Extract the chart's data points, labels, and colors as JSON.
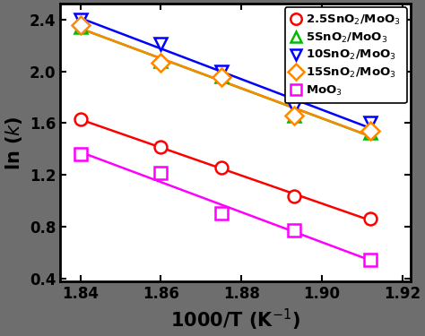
{
  "series": [
    {
      "label": "2.5SnO$_2$/MoO$_3$",
      "color": "#ff0000",
      "marker": "o",
      "hollow": true,
      "half_filled": true,
      "x": [
        1.84,
        1.86,
        1.875,
        1.893,
        1.912
      ],
      "y": [
        1.63,
        1.415,
        1.255,
        1.035,
        0.865
      ]
    },
    {
      "label": "5SnO$_2$/MoO$_3$",
      "color": "#00bb00",
      "marker": "^",
      "hollow": true,
      "half_filled": false,
      "x": [
        1.84,
        1.86,
        1.875,
        1.893,
        1.912
      ],
      "y": [
        2.34,
        2.08,
        1.96,
        1.66,
        1.53
      ]
    },
    {
      "label": "10SnO$_2$/MoO$_3$",
      "color": "#0000ff",
      "marker": "v",
      "hollow": true,
      "half_filled": false,
      "x": [
        1.84,
        1.86,
        1.875,
        1.893,
        1.912
      ],
      "y": [
        2.4,
        2.21,
        2.0,
        1.72,
        1.6
      ]
    },
    {
      "label": "15SnO$_2$/MoO$_3$",
      "color": "#ff8800",
      "marker": "D",
      "hollow": true,
      "half_filled": false,
      "x": [
        1.84,
        1.86,
        1.875,
        1.893,
        1.912
      ],
      "y": [
        2.355,
        2.065,
        1.955,
        1.66,
        1.54
      ]
    },
    {
      "label": "MoO$_3$",
      "color": "#ff00ff",
      "marker": "s",
      "hollow": true,
      "half_filled": false,
      "x": [
        1.84,
        1.86,
        1.875,
        1.893,
        1.912
      ],
      "y": [
        1.36,
        1.215,
        0.905,
        0.775,
        0.55
      ]
    }
  ],
  "xlabel": "1000/T (K$^{-1}$)",
  "ylabel": "ln ($\\mathit{k}$)",
  "xlim": [
    1.835,
    1.922
  ],
  "ylim": [
    0.38,
    2.52
  ],
  "xticks": [
    1.84,
    1.86,
    1.88,
    1.9,
    1.92
  ],
  "yticks": [
    0.4,
    0.8,
    1.2,
    1.6,
    2.0,
    2.4
  ],
  "outer_bg": "#6e6e6e",
  "plot_background": "#ffffff",
  "marker_size": 10,
  "line_width": 1.8,
  "legend_fontsize": 9.5,
  "axis_label_fontsize": 15,
  "tick_fontsize": 12
}
